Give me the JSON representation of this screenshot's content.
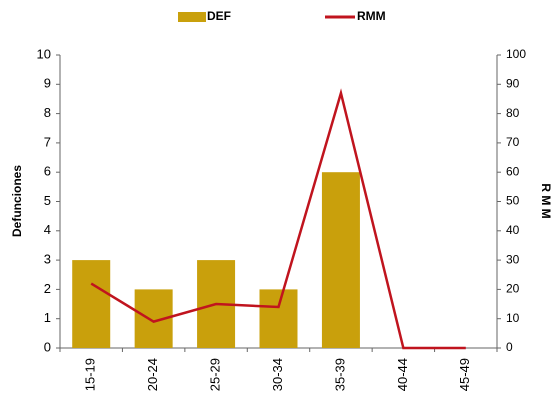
{
  "chart_data": {
    "type": "bar_line",
    "categories": [
      "15-19",
      "20-24",
      "25-29",
      "30-34",
      "35-39",
      "40-44",
      "45-49"
    ],
    "series": [
      {
        "name": "DEF",
        "color": "#c9a00c",
        "type": "bar",
        "values": [
          3,
          2,
          3,
          2,
          6,
          0,
          0
        ]
      },
      {
        "name": "RMM",
        "color": "#c0141e",
        "type": "line",
        "axis": "y2",
        "values": [
          22,
          9,
          15,
          14,
          87,
          0,
          0
        ]
      }
    ],
    "ylabel": "Defunciones",
    "y2label": "R M M",
    "ylim": [
      0,
      10
    ],
    "yticks": [
      0,
      1,
      2,
      3,
      4,
      5,
      6,
      7,
      8,
      9,
      10
    ],
    "y2lim": [
      0,
      100
    ],
    "y2ticks": [
      0,
      10,
      20,
      30,
      40,
      50,
      60,
      70,
      80,
      90,
      100
    ],
    "legend": "top",
    "grid": false
  }
}
